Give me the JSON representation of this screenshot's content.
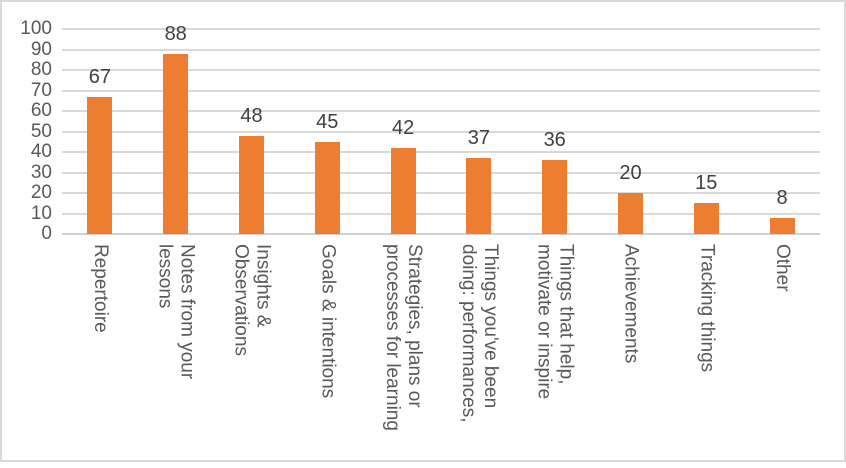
{
  "chart_data": {
    "type": "bar",
    "title": "",
    "xlabel": "",
    "ylabel": "",
    "categories": [
      "Repertoire",
      "Notes from your\nlessons",
      "Insights &\nObservations",
      "Goals & intentions",
      "Strategies, plans or\nprocesses for learning",
      "Things you've been\ndoing: performances,",
      "Things that help,\nmotivate or inspire",
      "Achievements",
      "Tracking things",
      "Other"
    ],
    "values": [
      67,
      88,
      48,
      45,
      42,
      37,
      36,
      20,
      15,
      8
    ],
    "data_labels": [
      "67",
      "88",
      "48",
      "45",
      "42",
      "37",
      "36",
      "20",
      "15",
      "8"
    ],
    "data_labels_visible": true,
    "ylim": [
      0,
      100
    ],
    "y_ticks": [
      0,
      10,
      20,
      30,
      40,
      50,
      60,
      70,
      80,
      90,
      100
    ],
    "grid": true,
    "legend": false,
    "category_label_rotation": "vertical-top-to-bottom",
    "colors": {
      "bar": "#ED7D31",
      "gridline": "#D9D9D9",
      "axis_line": "#D0D0D0",
      "axis_text": "#595959",
      "data_label_text": "#404040",
      "frame_border": "#D9D9D9",
      "background": "#FFFFFF"
    }
  }
}
